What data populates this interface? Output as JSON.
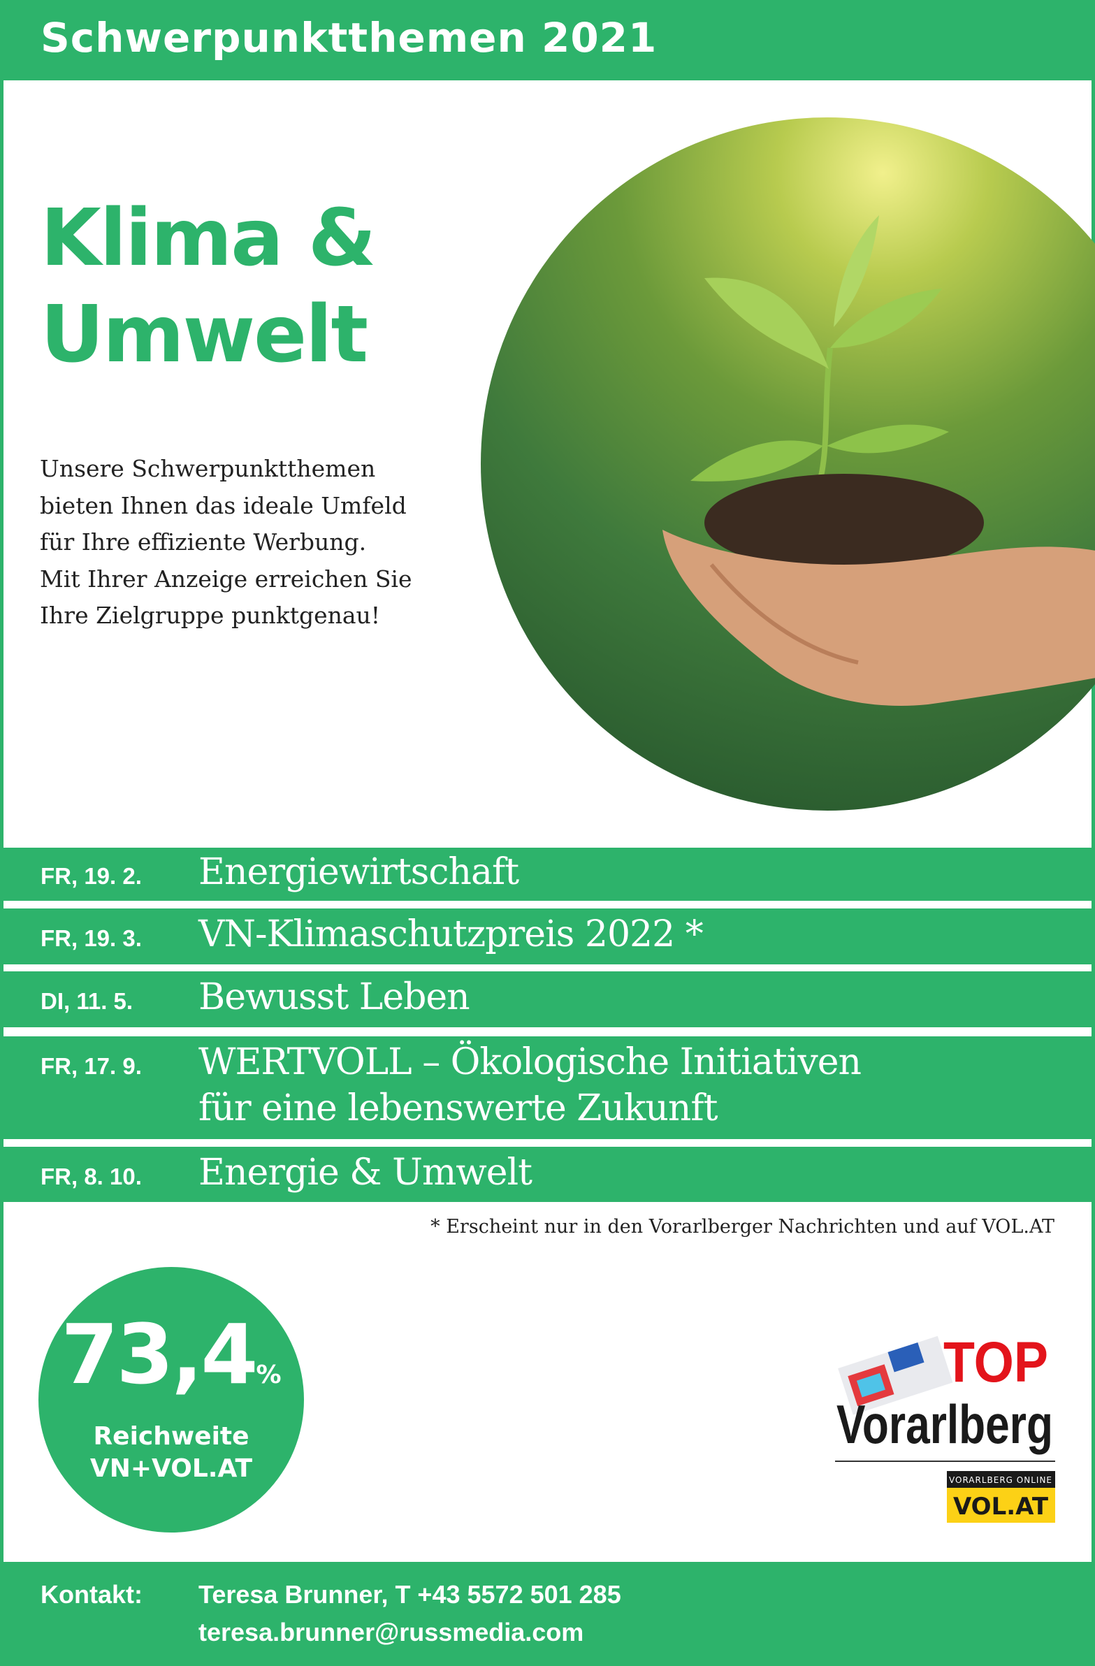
{
  "header": {
    "title": "Schwerpunktthemen 2021"
  },
  "hero": {
    "title_line1": "Klima &",
    "title_line2": "Umwelt",
    "intro": [
      "Unsere Schwerpunktthemen",
      "bieten Ihnen das ideale Umfeld",
      "für Ihre effiziente Werbung.",
      "Mit Ihrer Anzeige erreichen Sie",
      "Ihre Zielgruppe punktgenau!"
    ]
  },
  "topics": [
    {
      "date": "FR, 19. 2.",
      "title": "Energiewirtschaft"
    },
    {
      "date": "FR, 19. 3.",
      "title": "VN-Klimaschutzpreis 2022 *"
    },
    {
      "date": "DI, 11. 5.",
      "title": "Bewusst Leben"
    },
    {
      "date": "FR, 17. 9.",
      "title": "WERTVOLL – Ökologische Initiativen",
      "title2": "für eine lebenswerte Zukunft"
    },
    {
      "date": "FR, 8. 10.",
      "title": "Energie & Umwelt"
    }
  ],
  "footnote": "* Erscheint nur in den Vorarlberger Nachrichten und auf VOL.AT",
  "stat": {
    "value": "73,4",
    "unit": "%",
    "label1": "Reichweite",
    "label2": "VN+VOL.AT"
  },
  "logo": {
    "top": "TOP",
    "region": "Vorarlberg",
    "online": "VORARLBERG ONLINE",
    "site": "VOL.AT"
  },
  "contact": {
    "label": "Kontakt:",
    "line1": "Teresa Brunner, T +43 5572 501 285",
    "line2": "teresa.brunner@russmedia.com"
  },
  "colors": {
    "brand": "#2db36b",
    "logo_red": "#e3141b",
    "logo_yellow": "#fcd116"
  }
}
